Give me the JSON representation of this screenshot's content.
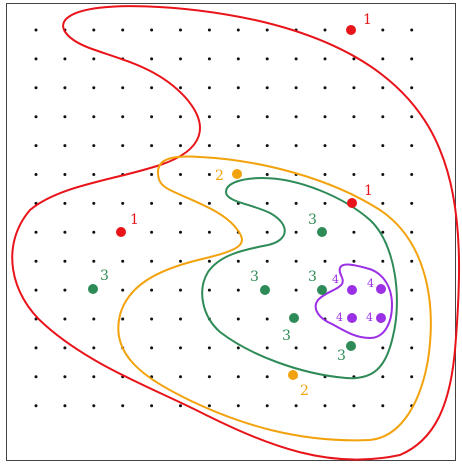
{
  "colors": {
    "red": "#e8141a",
    "orange": "#f2a20c",
    "green": "#2e8b57",
    "purple": "#9b30e6",
    "grid_dot": "#111111",
    "frame": "#444444"
  },
  "grid": {
    "cols": 14,
    "rows": 14
  },
  "points": [
    {
      "label": "1",
      "color": "red"
    },
    {
      "label": "1",
      "color": "red"
    },
    {
      "label": "1",
      "color": "red"
    },
    {
      "label": "2",
      "color": "orange"
    },
    {
      "label": "2",
      "color": "orange"
    },
    {
      "label": "3",
      "color": "green"
    },
    {
      "label": "3",
      "color": "green"
    },
    {
      "label": "3",
      "color": "green"
    },
    {
      "label": "3",
      "color": "green"
    },
    {
      "label": "3",
      "color": "green"
    },
    {
      "label": "3",
      "color": "green"
    },
    {
      "label": "4",
      "color": "purple"
    },
    {
      "label": "4",
      "color": "purple"
    },
    {
      "label": "4",
      "color": "purple"
    },
    {
      "label": "4",
      "color": "purple"
    }
  ],
  "curves": [
    {
      "name": "level-1-contour",
      "color": "red"
    },
    {
      "name": "level-2-contour",
      "color": "orange"
    },
    {
      "name": "level-3-contour",
      "color": "green"
    },
    {
      "name": "level-4-contour",
      "color": "purple"
    }
  ]
}
